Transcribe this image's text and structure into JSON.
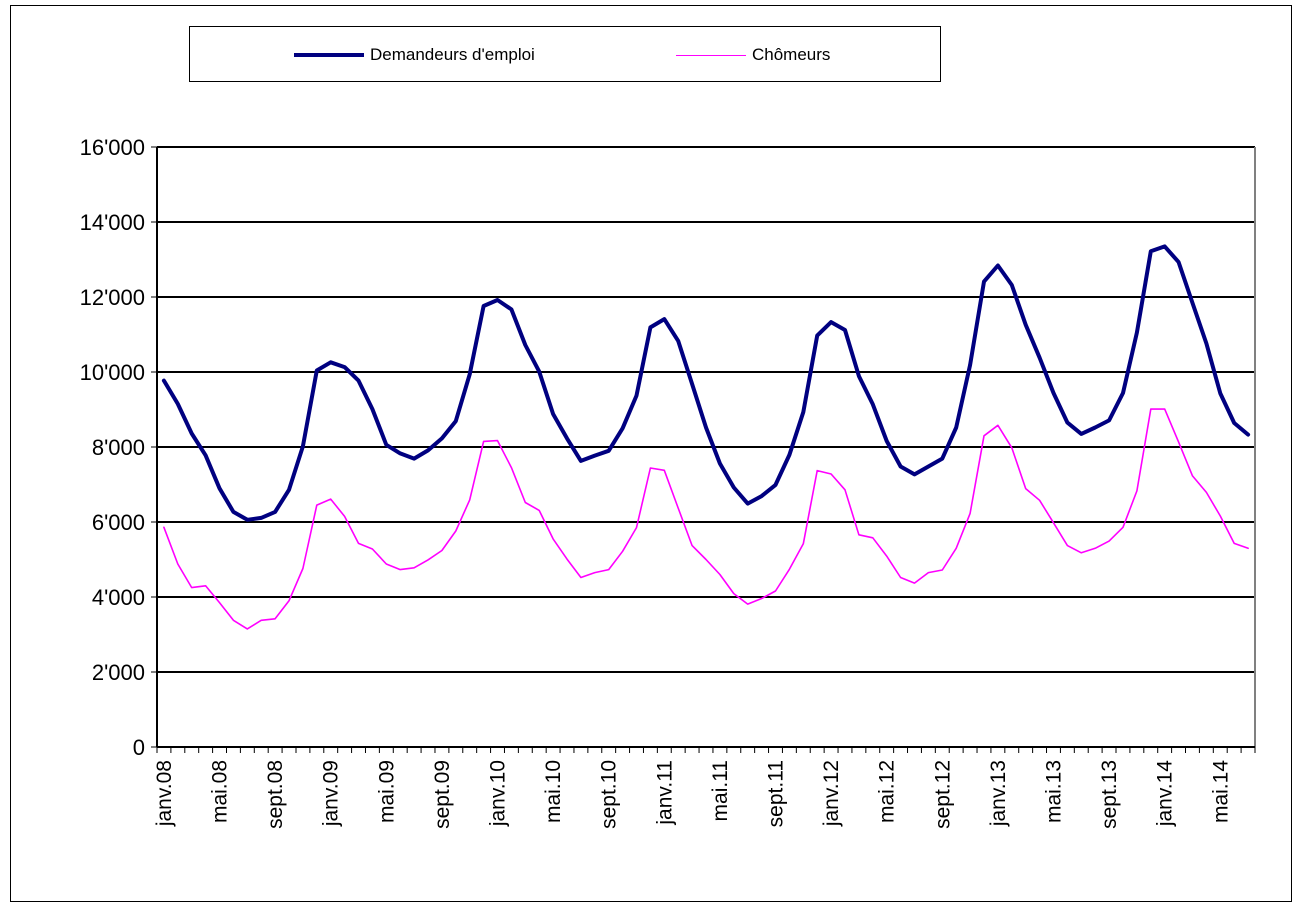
{
  "colors": {
    "demandeurs": "#000080",
    "chomeurs": "#ff00ff",
    "grid": "#000000",
    "axis": "#808080"
  },
  "legend": {
    "series1_label": "Demandeurs d'emploi",
    "series2_label": "Chômeurs"
  },
  "chart_data": {
    "type": "line",
    "title": "",
    "xlabel": "",
    "ylabel": "",
    "ylim": [
      0,
      16000
    ],
    "y_ticks": [
      "0",
      "2'000",
      "4'000",
      "6'000",
      "8'000",
      "10'000",
      "12'000",
      "14'000",
      "16'000"
    ],
    "grid": "horizontal",
    "legend_position": "top",
    "x_tick_labels": [
      "janv.08",
      "mai.08",
      "sept.08",
      "janv.09",
      "mai.09",
      "sept.09",
      "janv.10",
      "mai.10",
      "sept.10",
      "janv.11",
      "mai.11",
      "sept.11",
      "janv.12",
      "mai.12",
      "sept.12",
      "janv.13",
      "mai.13",
      "sept.13",
      "janv.14",
      "mai.14"
    ],
    "label_every": 4,
    "series": [
      {
        "name": "Demandeurs d'emploi",
        "values": [
          9770,
          9150,
          8360,
          7780,
          6900,
          6270,
          6060,
          6110,
          6270,
          6860,
          8020,
          10040,
          10260,
          10130,
          9770,
          9010,
          8060,
          7830,
          7690,
          7910,
          8230,
          8690,
          9940,
          11760,
          11920,
          11670,
          10720,
          10010,
          8880,
          8230,
          7630,
          7770,
          7900,
          8500,
          9370,
          11190,
          11410,
          10830,
          9680,
          8520,
          7560,
          6920,
          6490,
          6690,
          6990,
          7790,
          8930,
          10970,
          11330,
          11120,
          9890,
          9140,
          8160,
          7480,
          7270,
          7480,
          7690,
          8520,
          10190,
          12410,
          12840,
          12320,
          11260,
          10380,
          9440,
          8650,
          8350,
          8520,
          8710,
          9440,
          11050,
          13220,
          13350,
          12930,
          11840,
          10760,
          9430,
          8640,
          8330
        ],
        "color": "#000080"
      },
      {
        "name": "Chômeurs",
        "values": [
          5860,
          4880,
          4250,
          4300,
          3850,
          3380,
          3150,
          3380,
          3420,
          3900,
          4760,
          6450,
          6610,
          6150,
          5430,
          5280,
          4880,
          4730,
          4780,
          4990,
          5240,
          5760,
          6590,
          8150,
          8170,
          7450,
          6520,
          6310,
          5550,
          5010,
          4520,
          4650,
          4730,
          5220,
          5850,
          7440,
          7380,
          6370,
          5370,
          5000,
          4600,
          4090,
          3810,
          3960,
          4160,
          4740,
          5420,
          7370,
          7280,
          6860,
          5660,
          5580,
          5090,
          4520,
          4370,
          4650,
          4720,
          5300,
          6230,
          8300,
          8580,
          7980,
          6890,
          6580,
          5980,
          5370,
          5180,
          5300,
          5490,
          5860,
          6830,
          9010,
          9010,
          8130,
          7230,
          6790,
          6160,
          5430,
          5300
        ],
        "color": "#ff00ff"
      }
    ]
  }
}
